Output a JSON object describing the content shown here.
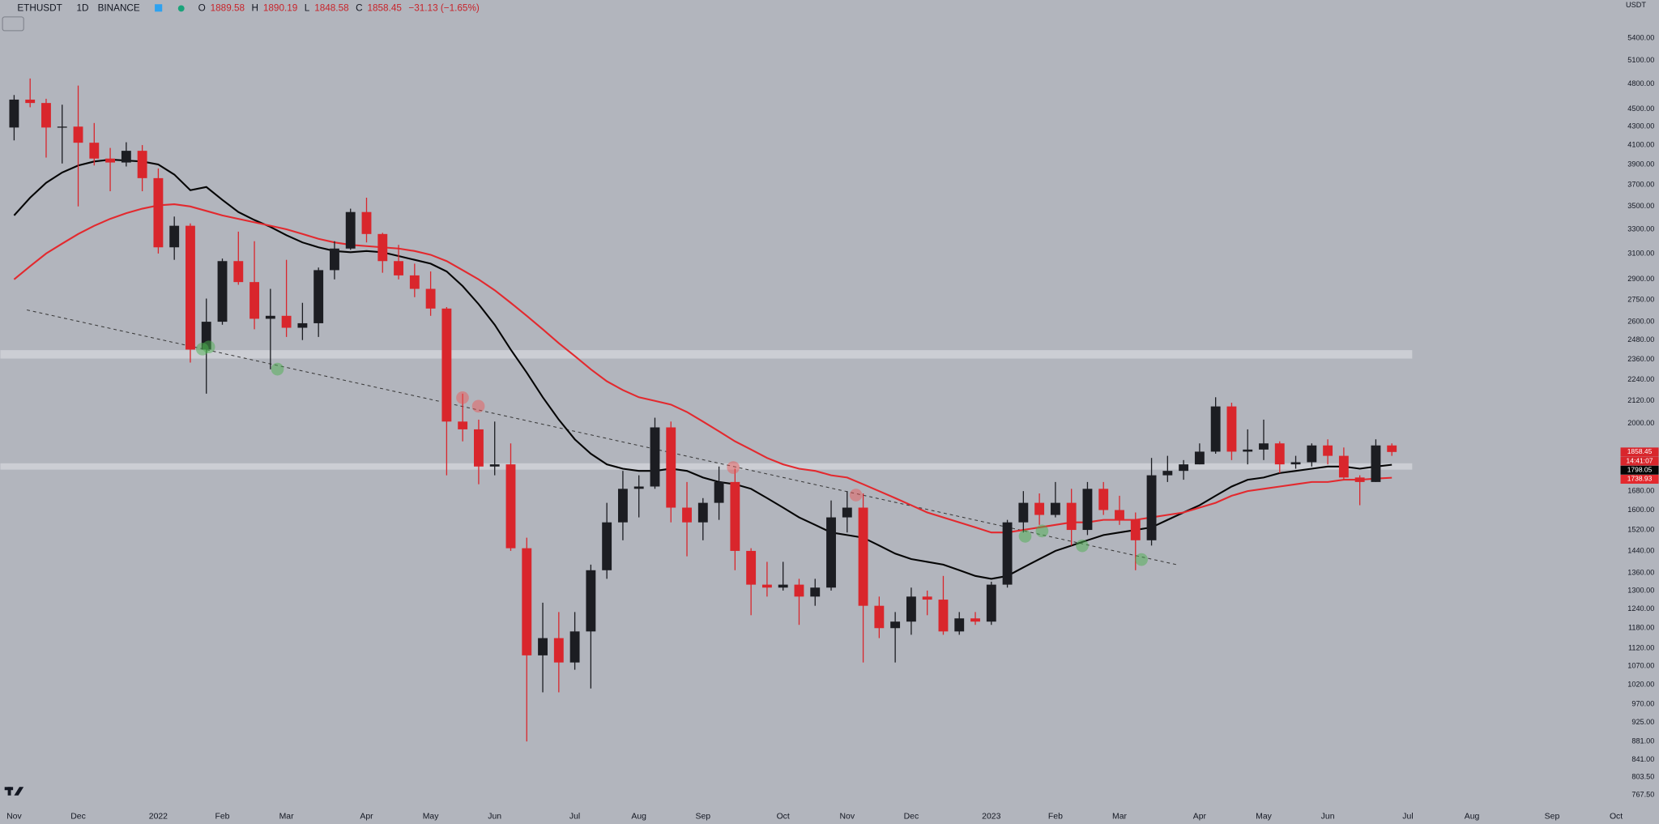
{
  "header": {
    "symbol": "ETHUSDT",
    "interval": "1D",
    "exchange": "BINANCE",
    "open_label": "O",
    "open": 1889.58,
    "high_label": "H",
    "high": 1890.19,
    "low_label": "L",
    "low": 1848.58,
    "close_label": "C",
    "close": 1858.45,
    "change": "−31.13 (−1.65%)"
  },
  "chart_data": {
    "type": "candlestick",
    "currency": "USDT",
    "countdown": "14:41:07",
    "categories": [
      "Nov",
      null,
      null,
      null,
      "Dec",
      null,
      null,
      null,
      null,
      "2022",
      null,
      null,
      null,
      "Feb",
      null,
      null,
      null,
      "Mar",
      null,
      null,
      null,
      null,
      "Apr",
      null,
      null,
      null,
      "May",
      null,
      null,
      null,
      "Jun",
      null,
      null,
      null,
      null,
      "Jul",
      null,
      null,
      null,
      "Aug",
      null,
      null,
      null,
      "Sep",
      null,
      null,
      null,
      null,
      "Oct",
      null,
      null,
      null,
      "Nov",
      null,
      null,
      null,
      "Dec",
      null,
      null,
      null,
      null,
      "2023",
      null,
      null,
      null,
      "Feb",
      null,
      null,
      null,
      "Mar",
      null,
      null,
      null,
      null,
      "Apr",
      null,
      null,
      null,
      "May",
      null,
      null,
      null,
      "Jun",
      null,
      null,
      null,
      null,
      "Jul",
      null,
      null,
      null,
      "Aug",
      null,
      null,
      null,
      null,
      "Sep",
      null,
      null,
      null,
      "Oct"
    ],
    "open": [
      4290,
      4610,
      4570,
      4290,
      4300,
      4125,
      3960,
      3920,
      4040,
      3765,
      3150,
      3330,
      2420,
      2600,
      3040,
      2880,
      2620,
      2640,
      2560,
      2590,
      2970,
      3140,
      3450,
      3260,
      3040,
      2930,
      2830,
      2690,
      2010,
      1970,
      1790,
      1800,
      1450,
      1100,
      1150,
      1080,
      1170,
      1370,
      1550,
      1690,
      1700,
      1980,
      1610,
      1550,
      1630,
      1720,
      1440,
      1320,
      1310,
      1320,
      1280,
      1310,
      1570,
      1610,
      1250,
      1180,
      1200,
      1280,
      1270,
      1170,
      1210,
      1200,
      1320,
      1550,
      1630,
      1580,
      1630,
      1520,
      1690,
      1600,
      1560,
      1480,
      1750,
      1770,
      1800,
      1860,
      2090,
      1860,
      1870,
      1900,
      1800,
      1810,
      1890,
      1840,
      1740,
      1720,
      1890,
      null,
      null,
      null,
      null,
      null,
      null,
      null,
      null,
      null,
      null,
      null,
      null,
      null,
      null
    ],
    "high": [
      4665,
      4868,
      4620,
      4550,
      4780,
      4340,
      4070,
      4130,
      4100,
      3860,
      3410,
      3350,
      2760,
      3060,
      3280,
      3200,
      2830,
      3050,
      2730,
      2990,
      3200,
      3480,
      3580,
      3270,
      3170,
      3020,
      2960,
      2700,
      2160,
      2020,
      2010,
      1900,
      1490,
      1260,
      1230,
      1230,
      1390,
      1630,
      1770,
      1750,
      2030,
      2010,
      1720,
      1650,
      1790,
      1780,
      1450,
      1400,
      1400,
      1340,
      1340,
      1640,
      1680,
      1670,
      1280,
      1230,
      1310,
      1300,
      1350,
      1230,
      1230,
      1330,
      1560,
      1680,
      1670,
      1720,
      1690,
      1720,
      1720,
      1660,
      1590,
      1830,
      1840,
      1820,
      1900,
      2140,
      2110,
      1970,
      2020,
      1910,
      1840,
      1900,
      1920,
      1880,
      1750,
      1920,
      1900,
      null,
      null,
      null,
      null,
      null,
      null,
      null,
      null,
      null,
      null,
      null,
      null,
      null,
      null
    ],
    "low": [
      4150,
      4520,
      3970,
      3910,
      3500,
      3890,
      3640,
      3880,
      3640,
      3100,
      3050,
      2340,
      2160,
      2580,
      2860,
      2550,
      2300,
      2500,
      2480,
      2500,
      2900,
      3130,
      3190,
      2950,
      2900,
      2770,
      2640,
      1750,
      1910,
      1710,
      1750,
      1440,
      881,
      1000,
      1000,
      1060,
      1010,
      1340,
      1480,
      1570,
      1690,
      1550,
      1420,
      1480,
      1560,
      1370,
      1220,
      1280,
      1300,
      1190,
      1250,
      1300,
      1510,
      1080,
      1150,
      1080,
      1160,
      1220,
      1160,
      1160,
      1190,
      1190,
      1310,
      1510,
      1540,
      1570,
      1460,
      1500,
      1580,
      1540,
      1370,
      1460,
      1720,
      1730,
      1800,
      1850,
      1820,
      1800,
      1820,
      1760,
      1780,
      1790,
      1800,
      1730,
      1620,
      1720,
      1840,
      null,
      null,
      null,
      null,
      null,
      null,
      null,
      null,
      null,
      null,
      null,
      null,
      null,
      null
    ],
    "close": [
      4610,
      4570,
      4290,
      4300,
      4125,
      3960,
      3920,
      4040,
      3765,
      3150,
      3330,
      2420,
      2600,
      3040,
      2880,
      2620,
      2640,
      2560,
      2590,
      2970,
      3140,
      3450,
      3260,
      3040,
      2930,
      2830,
      2690,
      2010,
      1970,
      1790,
      1800,
      1450,
      1100,
      1150,
      1080,
      1170,
      1370,
      1550,
      1690,
      1700,
      1980,
      1610,
      1550,
      1630,
      1720,
      1440,
      1320,
      1310,
      1320,
      1280,
      1310,
      1570,
      1610,
      1250,
      1180,
      1200,
      1280,
      1270,
      1170,
      1210,
      1200,
      1320,
      1550,
      1630,
      1580,
      1630,
      1520,
      1690,
      1600,
      1560,
      1480,
      1750,
      1770,
      1800,
      1860,
      2090,
      1860,
      1870,
      1900,
      1800,
      1810,
      1890,
      1840,
      1740,
      1720,
      1890,
      1858.45,
      null,
      null,
      null,
      null,
      null,
      null,
      null,
      null,
      null,
      null,
      null,
      null,
      null,
      null
    ],
    "up_color": "#1c1d22",
    "down_color": "#d9262c",
    "series": [
      {
        "color": "#050505",
        "values": [
          3420,
          3580,
          3720,
          3820,
          3890,
          3930,
          3950,
          3940,
          3930,
          3900,
          3800,
          3650,
          3680,
          3560,
          3450,
          3380,
          3320,
          3250,
          3190,
          3150,
          3120,
          3110,
          3120,
          3110,
          3080,
          3050,
          3020,
          2960,
          2850,
          2720,
          2580,
          2420,
          2280,
          2140,
          2020,
          1920,
          1850,
          1800,
          1780,
          1770,
          1770,
          1780,
          1770,
          1740,
          1720,
          1710,
          1690,
          1650,
          1610,
          1570,
          1540,
          1510,
          1500,
          1490,
          1460,
          1430,
          1410,
          1400,
          1390,
          1370,
          1350,
          1340,
          1350,
          1380,
          1410,
          1440,
          1460,
          1480,
          1500,
          1510,
          1520,
          1530,
          1560,
          1590,
          1620,
          1660,
          1700,
          1730,
          1740,
          1760,
          1770,
          1780,
          1790,
          1790,
          1780,
          1790,
          1798.05,
          null,
          null,
          null,
          null,
          null,
          null,
          null,
          null,
          null,
          null,
          null,
          null,
          null,
          null
        ]
      },
      {
        "color": "#e3292e",
        "values": [
          2900,
          3000,
          3100,
          3180,
          3260,
          3330,
          3390,
          3440,
          3480,
          3510,
          3520,
          3500,
          3460,
          3420,
          3390,
          3360,
          3330,
          3300,
          3260,
          3220,
          3190,
          3170,
          3160,
          3150,
          3140,
          3120,
          3090,
          3040,
          2970,
          2900,
          2820,
          2730,
          2640,
          2550,
          2460,
          2380,
          2300,
          2230,
          2180,
          2140,
          2120,
          2100,
          2060,
          2010,
          1960,
          1910,
          1870,
          1830,
          1800,
          1780,
          1770,
          1750,
          1740,
          1710,
          1680,
          1650,
          1620,
          1590,
          1570,
          1550,
          1530,
          1510,
          1510,
          1520,
          1530,
          1540,
          1550,
          1550,
          1560,
          1560,
          1560,
          1570,
          1580,
          1590,
          1610,
          1630,
          1660,
          1680,
          1690,
          1700,
          1710,
          1720,
          1720,
          1730,
          1730,
          1735,
          1738.93,
          null,
          null,
          null,
          null,
          null,
          null,
          null,
          null,
          null,
          null,
          null,
          null,
          null,
          null
        ]
      }
    ],
    "log_scale": true,
    "grid": false,
    "ylim": [
      750,
      5960
    ],
    "yticks": [
      {
        "value": 5400,
        "label": "5400.00"
      },
      {
        "value": 5100,
        "label": "5100.00"
      },
      {
        "value": 4800,
        "label": "4800.00"
      },
      {
        "value": 4500,
        "label": "4500.00"
      },
      {
        "value": 4300,
        "label": "4300.00"
      },
      {
        "value": 4100,
        "label": "4100.00"
      },
      {
        "value": 3900,
        "label": "3900.00"
      },
      {
        "value": 3700,
        "label": "3700.00"
      },
      {
        "value": 3500,
        "label": "3500.00"
      },
      {
        "value": 3300,
        "label": "3300.00"
      },
      {
        "value": 3100,
        "label": "3100.00"
      },
      {
        "value": 2900,
        "label": "2900.00"
      },
      {
        "value": 2750,
        "label": "2750.00"
      },
      {
        "value": 2600,
        "label": "2600.00"
      },
      {
        "value": 2480,
        "label": "2480.00"
      },
      {
        "value": 2360,
        "label": "2360.00"
      },
      {
        "value": 2240,
        "label": "2240.00"
      },
      {
        "value": 2120,
        "label": "2120.00"
      },
      {
        "value": 2000,
        "label": "2000.00"
      },
      {
        "value": 1680,
        "label": "1680.00"
      },
      {
        "value": 1600,
        "label": "1600.00"
      },
      {
        "value": 1520,
        "label": "1520.00"
      },
      {
        "value": 1440,
        "label": "1440.00"
      },
      {
        "value": 1360,
        "label": "1360.00"
      },
      {
        "value": 1300,
        "label": "1300.00"
      },
      {
        "value": 1240,
        "label": "1240.00"
      },
      {
        "value": 1180,
        "label": "1180.00"
      },
      {
        "value": 1120,
        "label": "1120.00"
      },
      {
        "value": 1070,
        "label": "1070.00"
      },
      {
        "value": 1020,
        "label": "1020.00"
      },
      {
        "value": 970,
        "label": "970.00"
      },
      {
        "value": 925,
        "label": "925.00"
      },
      {
        "value": 881,
        "label": "881.00"
      },
      {
        "value": 841,
        "label": "841.00"
      },
      {
        "value": 803.5,
        "label": "803.50"
      },
      {
        "value": 767.5,
        "label": "767.50"
      }
    ]
  }
}
